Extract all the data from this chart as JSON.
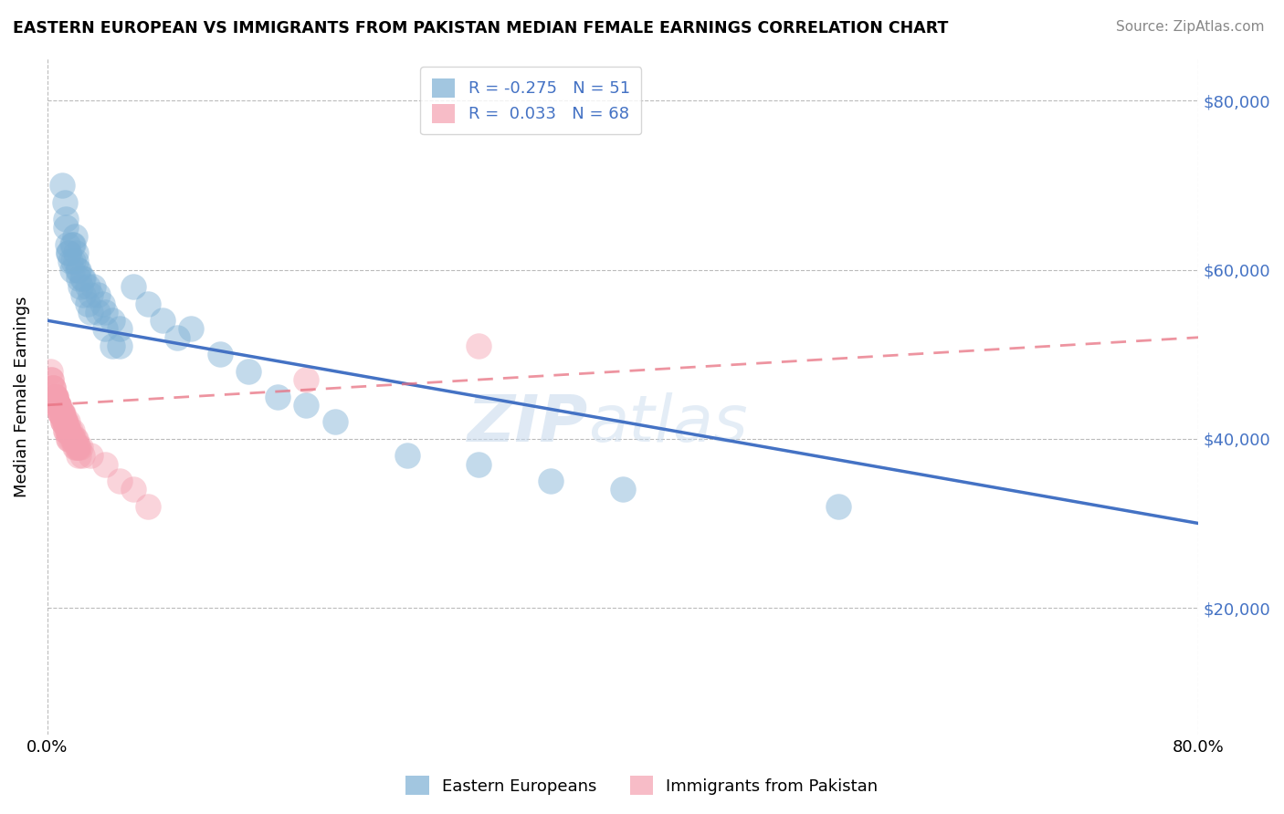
{
  "title": "EASTERN EUROPEAN VS IMMIGRANTS FROM PAKISTAN MEDIAN FEMALE EARNINGS CORRELATION CHART",
  "source": "Source: ZipAtlas.com",
  "ylabel": "Median Female Earnings",
  "xlim": [
    0,
    0.8
  ],
  "ylim": [
    5000,
    85000
  ],
  "watermark_zip": "ZIP",
  "watermark_atlas": "atlas",
  "y_ticks": [
    20000,
    40000,
    60000,
    80000
  ],
  "ee_line": {
    "x0": 0.0,
    "y0": 54000,
    "x1": 0.8,
    "y1": 30000
  },
  "pk_line": {
    "x0": 0.0,
    "y0": 44000,
    "x1": 0.8,
    "y1": 52000
  },
  "eastern_european": {
    "color": "#7bafd4",
    "line_color": "#4472c4",
    "R": -0.275,
    "N": 51,
    "x": [
      0.01,
      0.012,
      0.013,
      0.014,
      0.015,
      0.016,
      0.017,
      0.018,
      0.019,
      0.02,
      0.021,
      0.022,
      0.023,
      0.025,
      0.028,
      0.03,
      0.032,
      0.035,
      0.038,
      0.04,
      0.045,
      0.05,
      0.06,
      0.07,
      0.08,
      0.09,
      0.1,
      0.12,
      0.14,
      0.16,
      0.18,
      0.2,
      0.25,
      0.3,
      0.35,
      0.4,
      0.55,
      0.015,
      0.018,
      0.022,
      0.025,
      0.028,
      0.03,
      0.035,
      0.04,
      0.045,
      0.013,
      0.017,
      0.02,
      0.024,
      0.05
    ],
    "y": [
      70000,
      68000,
      65000,
      63000,
      62000,
      61000,
      60000,
      63000,
      64000,
      62000,
      60000,
      59000,
      58000,
      57000,
      56000,
      55000,
      58000,
      57000,
      56000,
      55000,
      54000,
      53000,
      58000,
      56000,
      54000,
      52000,
      53000,
      50000,
      48000,
      45000,
      44000,
      42000,
      38000,
      37000,
      35000,
      34000,
      32000,
      62000,
      61000,
      60000,
      59000,
      58000,
      57000,
      55000,
      53000,
      51000,
      66000,
      63000,
      61000,
      59000,
      51000
    ]
  },
  "pakistan": {
    "color": "#f4a0b0",
    "line_color": "#e87080",
    "R": 0.033,
    "N": 68,
    "x": [
      0.002,
      0.003,
      0.004,
      0.005,
      0.006,
      0.007,
      0.008,
      0.009,
      0.01,
      0.011,
      0.012,
      0.013,
      0.014,
      0.015,
      0.016,
      0.017,
      0.018,
      0.019,
      0.02,
      0.021,
      0.022,
      0.023,
      0.024,
      0.004,
      0.005,
      0.006,
      0.007,
      0.008,
      0.009,
      0.01,
      0.011,
      0.012,
      0.013,
      0.014,
      0.015,
      0.016,
      0.017,
      0.018,
      0.019,
      0.02,
      0.021,
      0.022,
      0.003,
      0.004,
      0.005,
      0.006,
      0.007,
      0.008,
      0.009,
      0.01,
      0.011,
      0.012,
      0.013,
      0.014,
      0.015,
      0.03,
      0.04,
      0.05,
      0.06,
      0.07,
      0.008,
      0.009,
      0.01,
      0.011,
      0.012,
      0.015,
      0.3,
      0.18
    ],
    "y": [
      48000,
      47000,
      46000,
      45000,
      45000,
      44000,
      44000,
      43000,
      43000,
      43000,
      42000,
      42000,
      42000,
      41000,
      41000,
      41000,
      40000,
      40000,
      40000,
      39000,
      39000,
      39000,
      38000,
      46000,
      45000,
      45000,
      44000,
      44000,
      43000,
      43000,
      42000,
      42000,
      41000,
      41000,
      41000,
      40000,
      40000,
      40000,
      39000,
      39000,
      39000,
      38000,
      47000,
      46000,
      45000,
      45000,
      44000,
      44000,
      43000,
      43000,
      42000,
      42000,
      41000,
      41000,
      40000,
      38000,
      37000,
      35000,
      34000,
      32000,
      44000,
      43000,
      43000,
      42000,
      42000,
      40000,
      51000,
      47000
    ]
  }
}
